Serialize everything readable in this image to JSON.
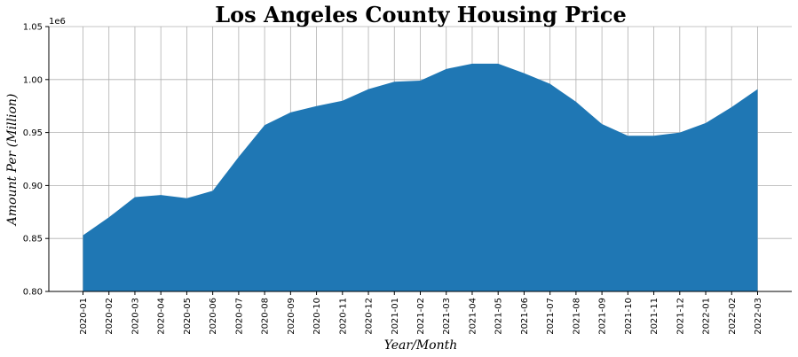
{
  "chart_data": {
    "type": "area",
    "title": "Los Angeles County Housing Price",
    "xlabel": "Year/Month",
    "ylabel": "Amount Per (Million)",
    "y_offset_label": "1e6",
    "ylim": [
      800000,
      1050000
    ],
    "yticks": [
      800000,
      850000,
      900000,
      950000,
      1000000,
      1050000
    ],
    "ytick_labels": [
      "0.80",
      "0.85",
      "0.90",
      "0.95",
      "1.00",
      "1.05"
    ],
    "grid": true,
    "color": "#1f77b4",
    "categories": [
      "2020-01",
      "2020-02",
      "2020-03",
      "2020-04",
      "2020-05",
      "2020-06",
      "2020-07",
      "2020-08",
      "2020-09",
      "2020-10",
      "2020-11",
      "2020-12",
      "2021-01",
      "2021-02",
      "2021-03",
      "2021-04",
      "2021-05",
      "2021-06",
      "2021-07",
      "2021-08",
      "2021-09",
      "2021-10",
      "2021-11",
      "2021-12",
      "2022-01",
      "2022-02",
      "2022-03"
    ],
    "values": [
      853000,
      870000,
      889000,
      891000,
      888000,
      895000,
      927000,
      957000,
      969000,
      975000,
      980000,
      991000,
      998000,
      999000,
      1010000,
      1015000,
      1015000,
      1006000,
      996000,
      979000,
      958000,
      947000,
      947000,
      950000,
      959000,
      974000,
      991000
    ]
  }
}
